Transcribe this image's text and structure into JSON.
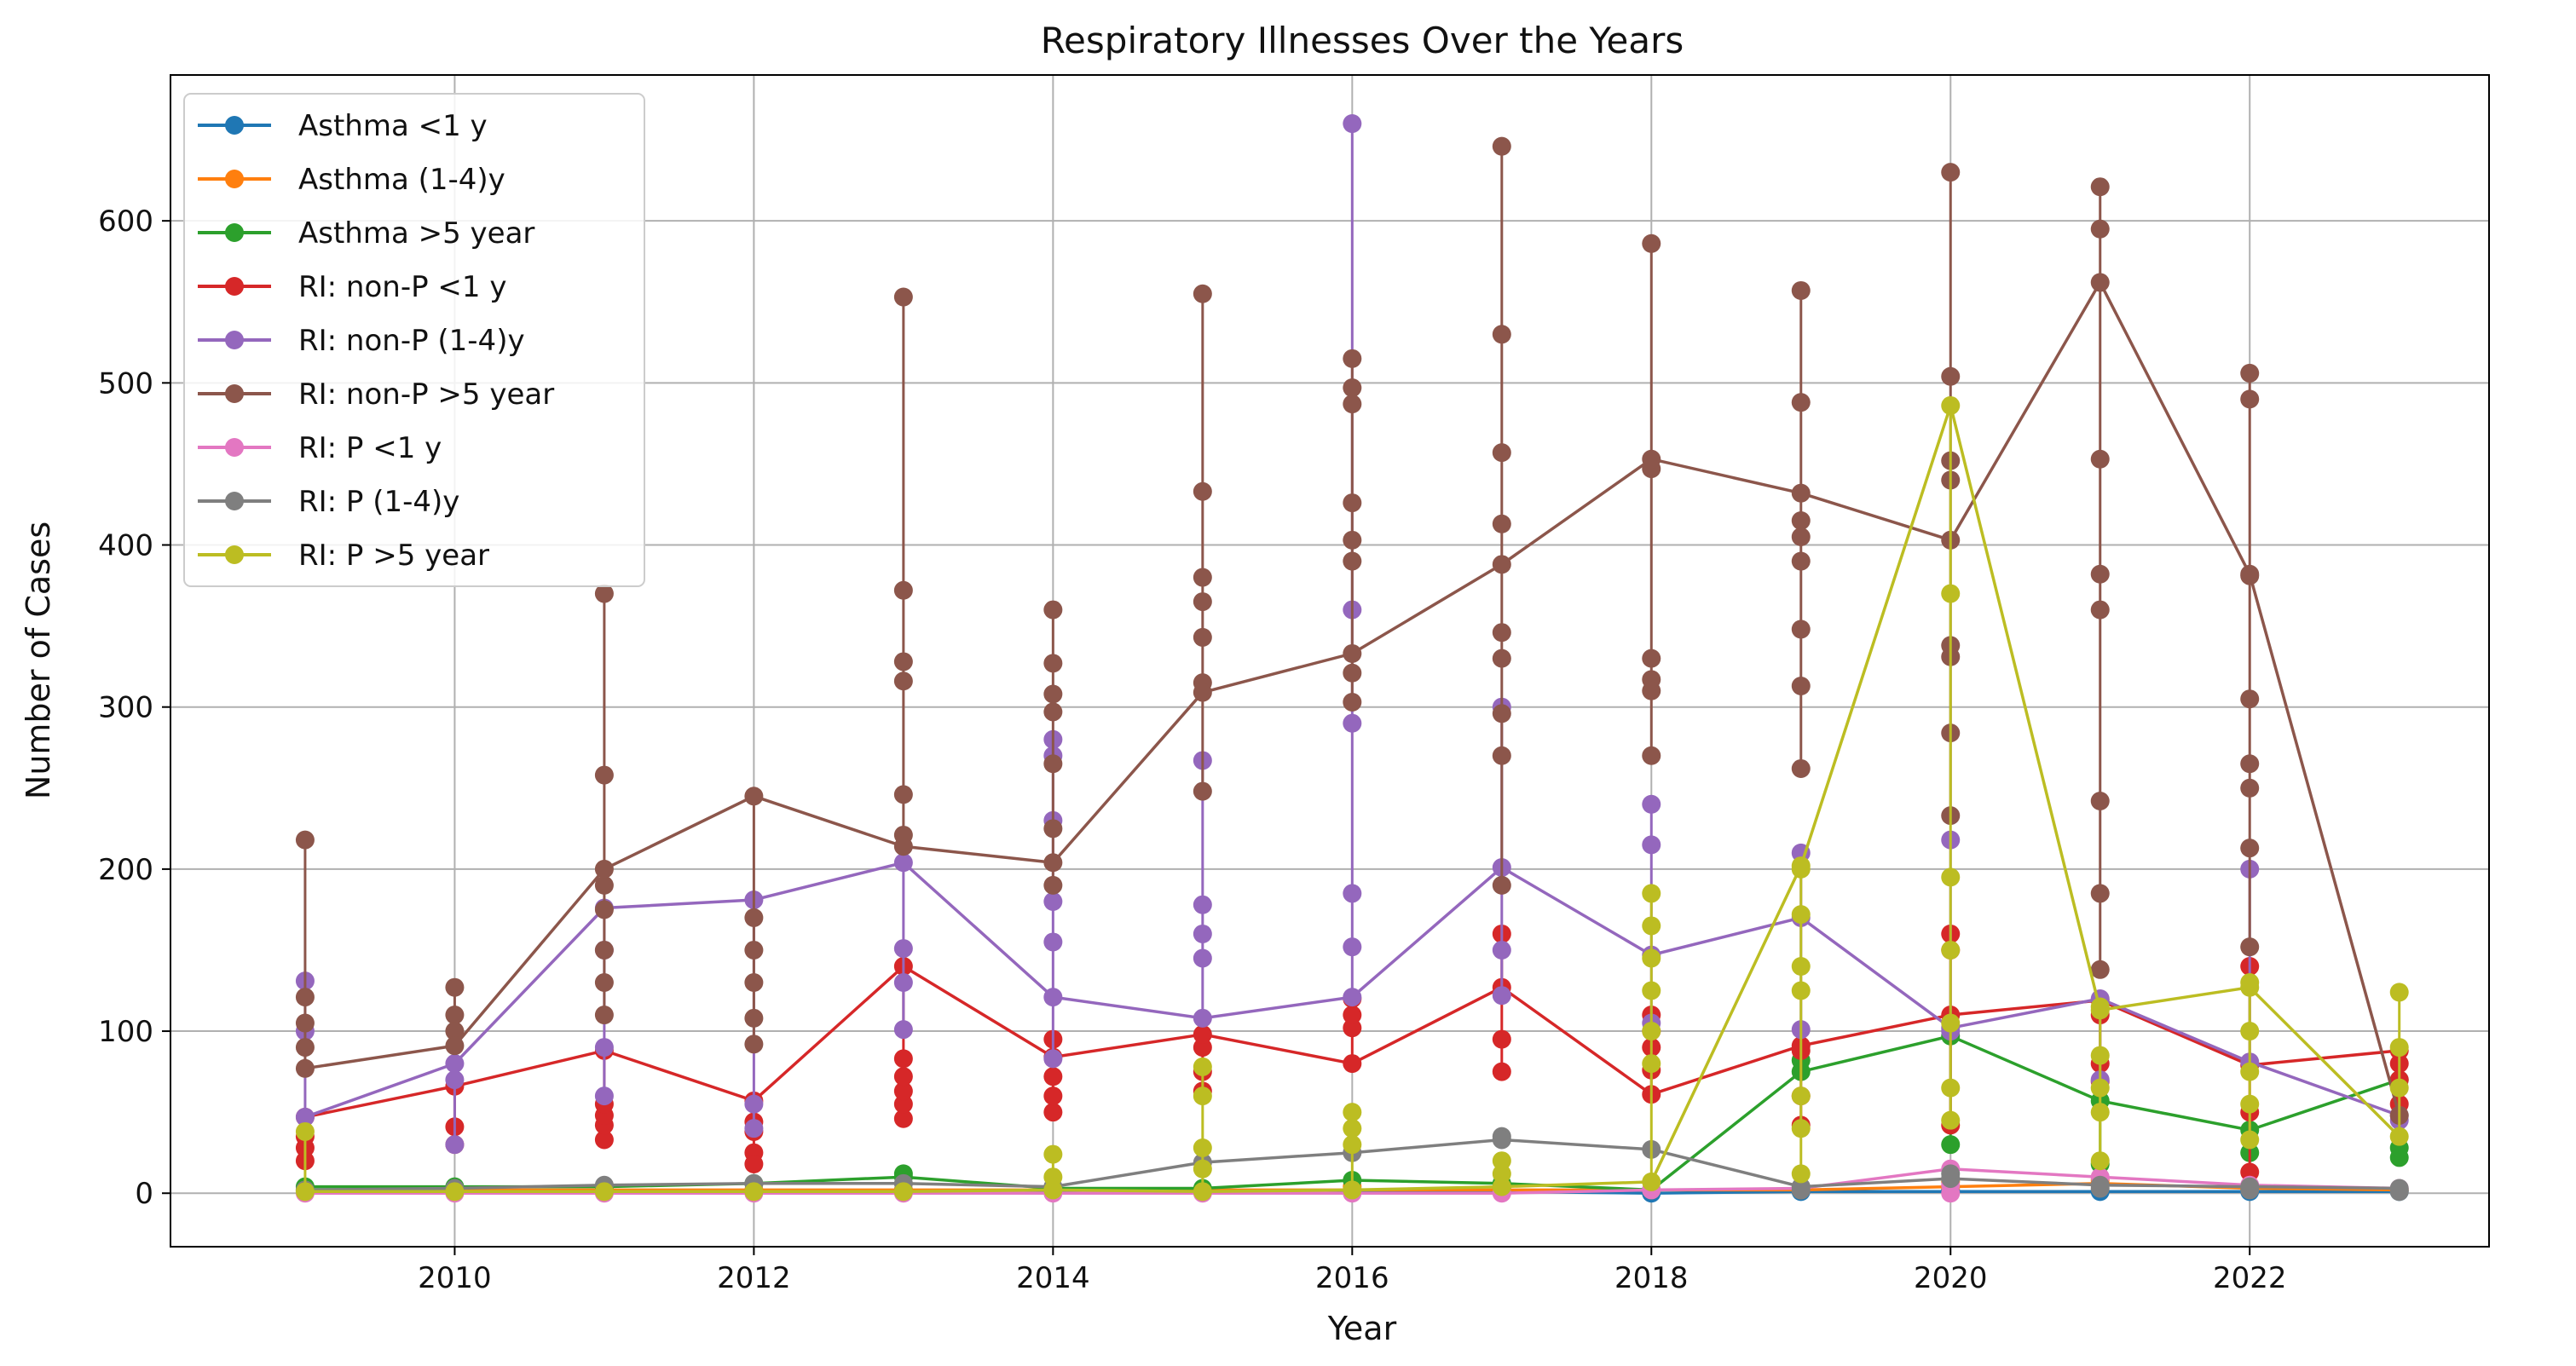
{
  "chart_data": {
    "type": "line",
    "title": "Respiratory Illnesses Over the Years",
    "xlabel": "Year",
    "ylabel": "Number of Cases",
    "xlim": [
      2008.1,
      2023.6
    ],
    "ylim": [
      -33,
      690
    ],
    "xticks": [
      2010,
      2012,
      2014,
      2016,
      2018,
      2020,
      2022
    ],
    "yticks": [
      0,
      100,
      200,
      300,
      400,
      500,
      600
    ],
    "grid": true,
    "legend_position": "top-left",
    "marker": "circle",
    "series": [
      {
        "name": "Asthma <1 y",
        "color": "#1f77b4",
        "x": [
          2009,
          2010,
          2011,
          2012,
          2013,
          2014,
          2015,
          2016,
          2017,
          2018,
          2019,
          2020,
          2021,
          2022,
          2023
        ],
        "values": [
          1,
          1,
          1,
          1,
          1,
          1,
          1,
          1,
          1,
          0,
          1,
          1,
          1,
          1,
          1
        ],
        "extra_x": [
          2009,
          2013,
          2017,
          2020,
          2023
        ],
        "extra_y": [
          2,
          2,
          3,
          2,
          2
        ]
      },
      {
        "name": "Asthma (1-4)y",
        "color": "#ff7f0e",
        "x": [
          2009,
          2010,
          2011,
          2012,
          2013,
          2014,
          2015,
          2016,
          2017,
          2018,
          2019,
          2020,
          2021,
          2022,
          2023
        ],
        "values": [
          2,
          2,
          2,
          2,
          2,
          2,
          2,
          2,
          2,
          2,
          2,
          4,
          6,
          3,
          2
        ],
        "extra_x": [
          2016,
          2020,
          2021
        ],
        "extra_y": [
          4,
          7,
          8
        ]
      },
      {
        "name": "Asthma >5 year",
        "color": "#2ca02c",
        "x": [
          2009,
          2010,
          2011,
          2012,
          2013,
          2014,
          2015,
          2016,
          2017,
          2018,
          2019,
          2020,
          2021,
          2022,
          2023
        ],
        "values": [
          4,
          4,
          4,
          6,
          10,
          3,
          3,
          8,
          6,
          2,
          75,
          97,
          57,
          39,
          70
        ],
        "extra_x": [
          2013,
          2019,
          2020,
          2021,
          2022,
          2023,
          2023
        ],
        "extra_y": [
          12,
          82,
          30,
          18,
          25,
          22,
          28
        ]
      },
      {
        "name": "RI: non-P  <1 y",
        "color": "#d62728",
        "x": [
          2009,
          2010,
          2011,
          2012,
          2013,
          2014,
          2015,
          2016,
          2017,
          2018,
          2019,
          2020,
          2021,
          2022,
          2023
        ],
        "values": [
          47,
          66,
          88,
          57,
          140,
          84,
          98,
          80,
          127,
          61,
          91,
          110,
          119,
          79,
          88
        ],
        "extra_x": [
          2009,
          2009,
          2009,
          2010,
          2010,
          2011,
          2011,
          2011,
          2011,
          2012,
          2012,
          2012,
          2012,
          2013,
          2013,
          2013,
          2013,
          2013,
          2014,
          2014,
          2014,
          2014,
          2015,
          2015,
          2015,
          2016,
          2016,
          2016,
          2017,
          2017,
          2017,
          2018,
          2018,
          2018,
          2018,
          2019,
          2019,
          2019,
          2020,
          2020,
          2020,
          2021,
          2021,
          2021,
          2022,
          2022,
          2022,
          2023,
          2023,
          2023
        ],
        "extra_y": [
          20,
          28,
          35,
          41,
          30,
          33,
          42,
          48,
          55,
          25,
          18,
          38,
          44,
          46,
          55,
          63,
          72,
          83,
          50,
          60,
          72,
          95,
          63,
          75,
          90,
          102,
          110,
          120,
          75,
          95,
          160,
          76,
          90,
          100,
          110,
          42,
          60,
          88,
          42,
          160,
          150,
          69,
          80,
          110,
          13,
          50,
          140,
          55,
          70,
          80
        ]
      },
      {
        "name": "RI: non-P (1-4)y",
        "color": "#9467bd",
        "x": [
          2009,
          2010,
          2011,
          2012,
          2013,
          2014,
          2015,
          2016,
          2017,
          2018,
          2019,
          2020,
          2021,
          2022,
          2023
        ],
        "values": [
          47,
          80,
          176,
          181,
          204,
          121,
          108,
          121,
          201,
          147,
          170,
          102,
          120,
          81,
          48
        ],
        "extra_x": [
          2009,
          2009,
          2010,
          2010,
          2011,
          2011,
          2011,
          2012,
          2012,
          2013,
          2013,
          2013,
          2014,
          2014,
          2014,
          2014,
          2014,
          2014,
          2015,
          2015,
          2015,
          2015,
          2016,
          2016,
          2016,
          2016,
          2016,
          2017,
          2017,
          2017,
          2018,
          2018,
          2018,
          2019,
          2019,
          2020,
          2020,
          2021,
          2022,
          2023
        ],
        "extra_y": [
          131,
          100,
          70,
          30,
          90,
          150,
          60,
          55,
          40,
          101,
          130,
          151,
          83,
          155,
          180,
          230,
          270,
          280,
          145,
          160,
          178,
          267,
          152,
          185,
          290,
          360,
          660,
          122,
          150,
          300,
          240,
          215,
          105,
          101,
          210,
          100,
          218,
          70,
          200,
          45
        ]
      },
      {
        "name": "RI: non-P  >5 year",
        "color": "#8c564b",
        "x": [
          2009,
          2010,
          2011,
          2012,
          2013,
          2014,
          2015,
          2016,
          2017,
          2018,
          2019,
          2020,
          2021,
          2022,
          2023
        ],
        "values": [
          77,
          91,
          200,
          245,
          214,
          204,
          309,
          333,
          388,
          453,
          432,
          403,
          562,
          382,
          48
        ],
        "extra_x": [
          2009,
          2009,
          2009,
          2009,
          2010,
          2010,
          2010,
          2011,
          2011,
          2011,
          2011,
          2011,
          2011,
          2011,
          2012,
          2012,
          2012,
          2012,
          2012,
          2013,
          2013,
          2013,
          2013,
          2013,
          2013,
          2014,
          2014,
          2014,
          2014,
          2014,
          2014,
          2014,
          2015,
          2015,
          2015,
          2015,
          2015,
          2015,
          2015,
          2016,
          2016,
          2016,
          2016,
          2016,
          2016,
          2016,
          2016,
          2017,
          2017,
          2017,
          2017,
          2017,
          2017,
          2017,
          2017,
          2017,
          2018,
          2018,
          2018,
          2018,
          2018,
          2018,
          2019,
          2019,
          2019,
          2019,
          2019,
          2019,
          2019,
          2019,
          2020,
          2020,
          2020,
          2020,
          2020,
          2020,
          2020,
          2020,
          2021,
          2021,
          2021,
          2021,
          2021,
          2021,
          2021,
          2021,
          2022,
          2022,
          2022,
          2022,
          2022,
          2022,
          2022,
          2022
        ],
        "extra_y": [
          218,
          121,
          105,
          90,
          127,
          110,
          100,
          370,
          258,
          190,
          175,
          150,
          130,
          110,
          170,
          150,
          130,
          108,
          92,
          553,
          372,
          328,
          316,
          246,
          221,
          360,
          327,
          308,
          297,
          265,
          225,
          190,
          555,
          433,
          380,
          365,
          343,
          315,
          248,
          515,
          497,
          487,
          426,
          403,
          390,
          321,
          303,
          646,
          530,
          457,
          413,
          346,
          330,
          296,
          270,
          190,
          586,
          447,
          330,
          317,
          310,
          270,
          557,
          488,
          415,
          405,
          390,
          348,
          313,
          262,
          630,
          504,
          452,
          440,
          338,
          331,
          284,
          233,
          621,
          595,
          453,
          382,
          360,
          242,
          185,
          138,
          506,
          490,
          381,
          305,
          265,
          250,
          213,
          152
        ]
      },
      {
        "name": "RI: P <1 y",
        "color": "#e377c2",
        "x": [
          2009,
          2010,
          2011,
          2012,
          2013,
          2014,
          2015,
          2016,
          2017,
          2018,
          2019,
          2020,
          2021,
          2022,
          2023
        ],
        "values": [
          0,
          0,
          0,
          0,
          0,
          0,
          0,
          0,
          0,
          2,
          3,
          15,
          10,
          5,
          3
        ],
        "extra_x": [
          2020,
          2020
        ],
        "extra_y": [
          5,
          0
        ]
      },
      {
        "name": "RI: P (1-4)y",
        "color": "#7f7f7f",
        "x": [
          2009,
          2010,
          2011,
          2012,
          2013,
          2014,
          2015,
          2016,
          2017,
          2018,
          2019,
          2020,
          2021,
          2022,
          2023
        ],
        "values": [
          2,
          3,
          5,
          6,
          6,
          4,
          19,
          25,
          33,
          27,
          4,
          9,
          5,
          4,
          3
        ],
        "extra_x": [
          2017,
          2019,
          2020,
          2021,
          2022,
          2023
        ],
        "extra_y": [
          35,
          2,
          12,
          3,
          2,
          1
        ]
      },
      {
        "name": "RI: P >5 year",
        "color": "#bcbd22",
        "x": [
          2009,
          2010,
          2011,
          2012,
          2013,
          2014,
          2015,
          2016,
          2017,
          2018,
          2019,
          2020,
          2021,
          2022,
          2023
        ],
        "values": [
          1,
          1,
          1,
          1,
          1,
          2,
          1,
          2,
          4,
          7,
          202,
          486,
          113,
          127,
          35
        ],
        "extra_x": [
          2009,
          2014,
          2014,
          2015,
          2015,
          2015,
          2015,
          2016,
          2016,
          2016,
          2017,
          2017,
          2018,
          2018,
          2018,
          2018,
          2018,
          2018,
          2019,
          2019,
          2019,
          2019,
          2019,
          2019,
          2019,
          2020,
          2020,
          2020,
          2020,
          2020,
          2020,
          2021,
          2021,
          2021,
          2021,
          2021,
          2022,
          2022,
          2022,
          2022,
          2022,
          2023,
          2023,
          2023
        ],
        "extra_y": [
          38,
          24,
          10,
          78,
          60,
          28,
          15,
          50,
          40,
          30,
          20,
          12,
          185,
          165,
          145,
          125,
          100,
          80,
          200,
          172,
          140,
          125,
          60,
          40,
          12,
          370,
          195,
          150,
          105,
          65,
          45,
          115,
          85,
          65,
          50,
          20,
          130,
          100,
          75,
          55,
          33,
          124,
          90,
          65
        ]
      }
    ]
  }
}
